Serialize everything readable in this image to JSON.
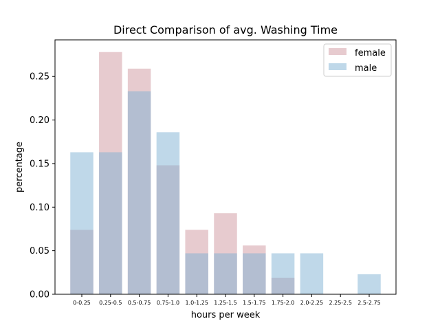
{
  "chart_data": {
    "type": "bar",
    "title": "Direct Comparison of avg. Washing Time",
    "xlabel": "hours per week",
    "ylabel": "percentage",
    "categories": [
      "0-0.25",
      "0.25-0.5",
      "0.5-0.75",
      "0.75-1.0",
      "1.0-1.25",
      "1.25-1.5",
      "1.5-1.75",
      "1.75-2.0",
      "2.0-2.25",
      "2.25-2.5",
      "2.5-2.75"
    ],
    "series": [
      {
        "name": "female",
        "color": "#c98b95",
        "opacity": 0.45,
        "values": [
          0.074,
          0.278,
          0.259,
          0.148,
          0.074,
          0.093,
          0.056,
          0.019,
          0.0,
          0.0,
          0.0
        ]
      },
      {
        "name": "male",
        "color": "#7fb1d3",
        "opacity": 0.5,
        "values": [
          0.163,
          0.163,
          0.233,
          0.186,
          0.047,
          0.047,
          0.047,
          0.047,
          0.047,
          0.0,
          0.023
        ]
      }
    ],
    "ylim": [
      0,
      0.292
    ],
    "yticks": [
      "0.00",
      "0.05",
      "0.10",
      "0.15",
      "0.20",
      "0.25"
    ],
    "grid": false,
    "legend_position": "top-right"
  }
}
